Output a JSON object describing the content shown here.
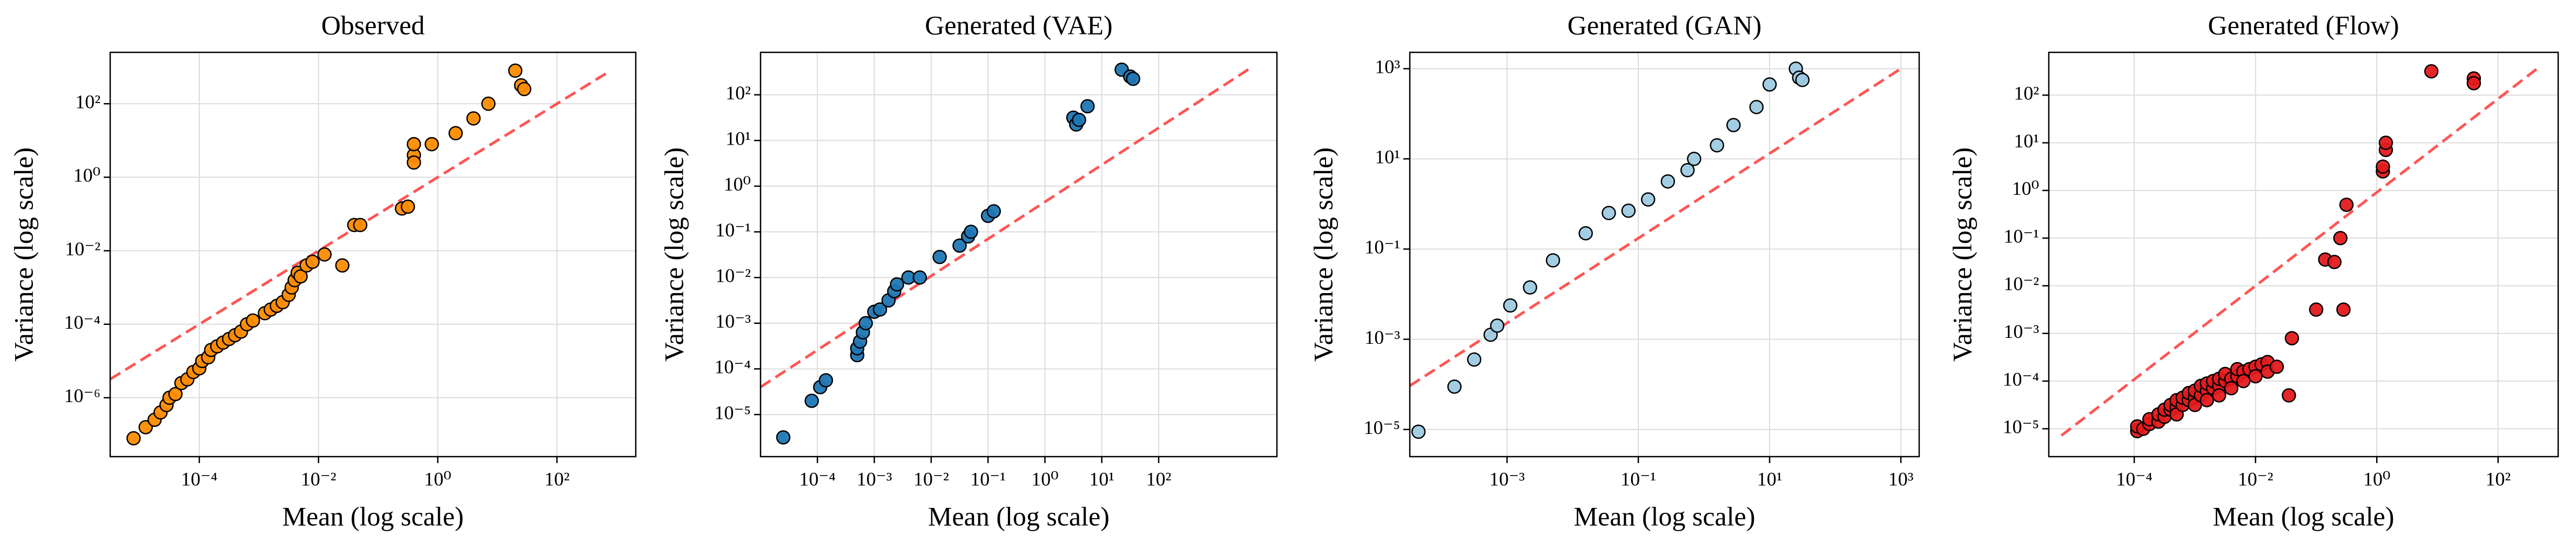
{
  "chart_data": [
    {
      "type": "scatter",
      "title": "Observed",
      "x_label": "Mean (log scale)",
      "y_label": "Variance (log scale)",
      "log_scale": true,
      "grid": true,
      "color": "#ff8c00",
      "x": [
        7.9e-06,
        1.26e-05,
        1.78e-05,
        2.24e-05,
        2.82e-05,
        3.16e-05,
        3.98e-05,
        5.01e-05,
        6.31e-05,
        7.94e-05,
        0.0001,
        0.000112,
        0.000141,
        0.000158,
        0.0002,
        0.000251,
        0.000316,
        0.000398,
        0.000501,
        0.000631,
        0.000794,
        0.00126,
        0.00158,
        0.002,
        0.00251,
        0.00316,
        0.00355,
        0.00398,
        0.00447,
        0.00501,
        0.00631,
        0.00794,
        0.0126,
        0.0251,
        0.0398,
        0.0501,
        0.251,
        0.316,
        0.398,
        0.398,
        0.398,
        0.794,
        2.0,
        3.98,
        7.08,
        20.0,
        25.1,
        28.2
      ],
      "values": [
        7.9e-08,
        1.58e-07,
        2.51e-07,
        3.98e-07,
        6.31e-07,
        1e-06,
        1.26e-06,
        2.51e-06,
        3.16e-06,
        5.01e-06,
        6.31e-06,
        1e-05,
        1.26e-05,
        2e-05,
        2.51e-05,
        3.16e-05,
        3.98e-05,
        5.01e-05,
        6.31e-05,
        0.0001,
        0.000126,
        0.0002,
        0.000251,
        0.000316,
        0.000398,
        0.000631,
        0.001,
        0.00158,
        0.00251,
        0.002,
        0.00398,
        0.00501,
        0.00794,
        0.00398,
        0.0501,
        0.0501,
        0.141,
        0.158,
        3.98,
        7.94,
        2.51,
        7.94,
        15.8,
        39.8,
        100,
        794,
        316,
        251
      ],
      "reference_line": {
        "x": [
          3.2e-06,
          710
        ],
        "y": [
          3.2e-06,
          710
        ],
        "color": "#ff5555",
        "style": "dashed"
      },
      "xlim": [
        3.2e-06,
        2100
      ],
      "ylim": [
        2.5e-08,
        2500
      ],
      "xticks": [
        {
          "value": 0.0001,
          "label": "10⁻⁴"
        },
        {
          "value": 0.01,
          "label": "10⁻²"
        },
        {
          "value": 1,
          "label": "10⁰"
        },
        {
          "value": 100,
          "label": "10²"
        }
      ],
      "yticks": [
        {
          "value": 1e-06,
          "label": "10⁻⁶"
        },
        {
          "value": 0.0001,
          "label": "10⁻⁴"
        },
        {
          "value": 0.01,
          "label": "10⁻²"
        },
        {
          "value": 1,
          "label": "10⁰"
        },
        {
          "value": 100,
          "label": "10²"
        }
      ]
    },
    {
      "type": "scatter",
      "title": "Generated (VAE)",
      "x_label": "Mean (log scale)",
      "y_label": "Variance (log scale)",
      "log_scale": true,
      "grid": true,
      "color": "#1f77b4",
      "x": [
        2.51e-05,
        7.94e-05,
        0.000112,
        0.000141,
        0.000501,
        0.000501,
        0.000562,
        0.000631,
        0.000708,
        0.001,
        0.00126,
        0.00178,
        0.00224,
        0.00251,
        0.00398,
        0.00631,
        0.0141,
        0.0316,
        0.0447,
        0.0501,
        0.1,
        0.126,
        3.16,
        3.55,
        3.98,
        5.62,
        22.4,
        31.6,
        35.5
      ],
      "values": [
        3.16e-06,
        2e-05,
        3.98e-05,
        5.62e-05,
        0.0002,
        0.000282,
        0.000398,
        0.000631,
        0.001,
        0.00178,
        0.002,
        0.00316,
        0.00501,
        0.00708,
        0.01,
        0.01,
        0.0282,
        0.0501,
        0.0794,
        0.1,
        0.224,
        0.282,
        31.6,
        22.4,
        28.2,
        56.2,
        355,
        251,
        224
      ],
      "reference_line": {
        "x": [
          1e-05,
          4300
        ],
        "y": [
          4e-05,
          400
        ],
        "color": "#ff5555",
        "style": "dashed"
      },
      "xlim": [
        1e-05,
        12000
      ],
      "ylim": [
        1.2e-06,
        850
      ],
      "xticks": [
        {
          "value": 0.0001,
          "label": "10⁻⁴"
        },
        {
          "value": 0.001,
          "label": "10⁻³"
        },
        {
          "value": 0.01,
          "label": "10⁻²"
        },
        {
          "value": 0.1,
          "label": "10⁻¹"
        },
        {
          "value": 1,
          "label": "10⁰"
        },
        {
          "value": 10,
          "label": "10¹"
        },
        {
          "value": 100,
          "label": "10²"
        }
      ],
      "yticks": [
        {
          "value": 1e-05,
          "label": "10⁻⁵"
        },
        {
          "value": 0.0001,
          "label": "10⁻⁴"
        },
        {
          "value": 0.001,
          "label": "10⁻³"
        },
        {
          "value": 0.01,
          "label": "10⁻²"
        },
        {
          "value": 0.1,
          "label": "10⁻¹"
        },
        {
          "value": 1,
          "label": "10⁰"
        },
        {
          "value": 10,
          "label": "10¹"
        },
        {
          "value": 100,
          "label": "10²"
        }
      ]
    },
    {
      "type": "scatter",
      "title": "Generated (GAN)",
      "x_label": "Mean (log scale)",
      "y_label": "Variance (log scale)",
      "log_scale": true,
      "grid": true,
      "color": "#9ecae1",
      "x": [
        4.47e-05,
        0.000158,
        0.000316,
        0.000562,
        0.000708,
        0.00112,
        0.00224,
        0.00501,
        0.0158,
        0.0355,
        0.0708,
        0.141,
        0.282,
        0.562,
        0.708,
        1.58,
        2.82,
        6.31,
        10,
        25.1,
        28.2,
        31.6
      ],
      "values": [
        8.91e-06,
        8.91e-05,
        0.000355,
        0.00126,
        0.002,
        0.00562,
        0.0141,
        0.0562,
        0.224,
        0.631,
        0.708,
        1.26,
        3.16,
        5.62,
        10,
        20,
        56.2,
        141,
        447,
        1000,
        631,
        562
      ],
      "reference_line": {
        "x": [
          3.3e-05,
          1000
        ],
        "y": [
          9.3e-05,
          1000
        ],
        "color": "#ff5555",
        "style": "dashed"
      },
      "xlim": [
        3.3e-05,
        1900
      ],
      "ylim": [
        2.5e-06,
        2300
      ],
      "xticks": [
        {
          "value": 0.001,
          "label": "10⁻³"
        },
        {
          "value": 0.1,
          "label": "10⁻¹"
        },
        {
          "value": 10,
          "label": "10¹"
        },
        {
          "value": 1000,
          "label": "10³"
        }
      ],
      "yticks": [
        {
          "value": 1e-05,
          "label": "10⁻⁵"
        },
        {
          "value": 0.001,
          "label": "10⁻³"
        },
        {
          "value": 0.1,
          "label": "10⁻¹"
        },
        {
          "value": 10,
          "label": "10¹"
        },
        {
          "value": 1000,
          "label": "10³"
        }
      ]
    },
    {
      "type": "scatter",
      "title": "Generated (Flow)",
      "x_label": "Mean (log scale)",
      "y_label": "Variance (log scale)",
      "log_scale": true,
      "grid": true,
      "color": "#e31a1c",
      "x": [
        0.000112,
        0.000112,
        0.000141,
        0.000178,
        0.000178,
        0.000251,
        0.000251,
        0.000316,
        0.000316,
        0.000398,
        0.000398,
        0.000501,
        0.000501,
        0.000501,
        0.000631,
        0.000631,
        0.000794,
        0.000794,
        0.001,
        0.001,
        0.001,
        0.00126,
        0.00126,
        0.00158,
        0.00158,
        0.00158,
        0.002,
        0.002,
        0.00251,
        0.00251,
        0.00251,
        0.00316,
        0.00316,
        0.00398,
        0.00398,
        0.00501,
        0.00501,
        0.00631,
        0.00631,
        0.00794,
        0.01,
        0.01,
        0.0126,
        0.0158,
        0.0158,
        0.0224,
        0.0355,
        0.0398,
        0.1,
        0.141,
        0.2,
        0.251,
        0.282,
        0.316,
        1.26,
        1.41,
        1.41,
        1.26,
        7.94,
        39.8,
        39.8
      ],
      "values": [
        8.91e-06,
        1.12e-05,
        1e-05,
        1.26e-05,
        1.58e-05,
        1.41e-05,
        2e-05,
        1.78e-05,
        2.51e-05,
        2.51e-05,
        3.16e-05,
        2.82e-05,
        3.98e-05,
        2e-05,
        3.16e-05,
        4.47e-05,
        3.98e-05,
        5.62e-05,
        4.47e-05,
        6.31e-05,
        3.16e-05,
        5.01e-05,
        7.94e-05,
        6.31e-05,
        8.91e-05,
        3.98e-05,
        7.08e-05,
        0.0001,
        7.94e-05,
        0.000112,
        5.01e-05,
        0.0001,
        0.000141,
        0.000112,
        7.08e-05,
        0.000126,
        0.000178,
        0.000158,
        0.0001,
        0.000178,
        0.0002,
        0.000126,
        0.000224,
        0.000251,
        0.000158,
        0.0002,
        5.01e-05,
        0.000794,
        0.00316,
        0.0355,
        0.0316,
        0.1,
        0.00316,
        0.501,
        2.51,
        7.08,
        10,
        3.16,
        316,
        224,
        178
      ],
      "reference_line": {
        "x": [
          6.3e-06,
          430
        ],
        "y": [
          7.2e-06,
          350
        ],
        "color": "#ff5555",
        "style": "dashed"
      },
      "xlim": [
        3.9e-06,
        980
      ],
      "ylim": [
        2.6e-06,
        790
      ],
      "xticks": [
        {
          "value": 0.0001,
          "label": "10⁻⁴"
        },
        {
          "value": 0.01,
          "label": "10⁻²"
        },
        {
          "value": 1,
          "label": "10⁰"
        },
        {
          "value": 100,
          "label": "10²"
        }
      ],
      "yticks": [
        {
          "value": 1e-05,
          "label": "10⁻⁵"
        },
        {
          "value": 0.0001,
          "label": "10⁻⁴"
        },
        {
          "value": 0.001,
          "label": "10⁻³"
        },
        {
          "value": 0.01,
          "label": "10⁻²"
        },
        {
          "value": 0.1,
          "label": "10⁻¹"
        },
        {
          "value": 1,
          "label": "10⁰"
        },
        {
          "value": 10,
          "label": "10¹"
        },
        {
          "value": 100,
          "label": "10²"
        }
      ]
    }
  ]
}
